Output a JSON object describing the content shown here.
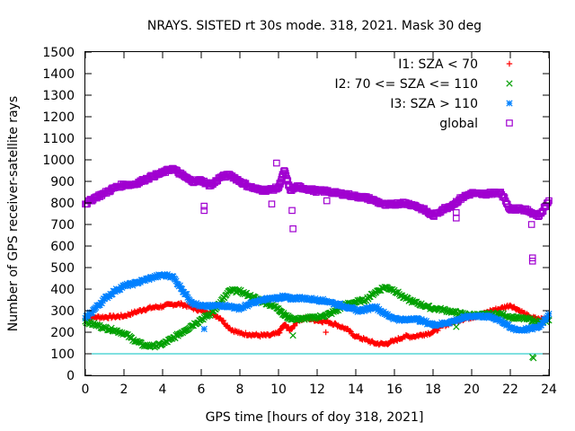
{
  "chart_data": {
    "type": "scatter",
    "title": "NRAYS. SISTED rt 30s mode. 318, 2021. Mask 30 deg",
    "xlabel": "GPS time [hours of doy 318, 2021]",
    "ylabel": "Number of GPS receiver-satellite rays",
    "xlim": [
      0,
      24
    ],
    "ylim": [
      0,
      1500
    ],
    "xticks": [
      0,
      2,
      4,
      6,
      8,
      10,
      12,
      14,
      16,
      18,
      20,
      22,
      24
    ],
    "yticks": [
      0,
      100,
      200,
      300,
      400,
      500,
      600,
      700,
      800,
      900,
      1000,
      1100,
      1200,
      1300,
      1400,
      1500
    ],
    "reference_line": {
      "y": 100,
      "color": "#00c0c0"
    },
    "legend_position": "top-right",
    "series": [
      {
        "name": "I1: SZA < 70",
        "marker": "plus",
        "color": "#ff0000",
        "x": [
          0,
          0.5,
          1,
          1.5,
          2,
          2.5,
          3,
          3.5,
          4,
          4.5,
          5,
          5.5,
          6,
          6.5,
          7,
          7.5,
          8,
          8.5,
          9,
          9.5,
          10,
          10.3,
          10.6,
          11,
          11.5,
          12,
          12.5,
          13,
          13.5,
          14,
          14.5,
          15,
          15.5,
          16,
          16.5,
          17,
          17.5,
          18,
          18.5,
          19,
          19.5,
          20,
          20.5,
          21,
          21.5,
          22,
          22.5,
          23,
          23.5,
          24
        ],
        "y": [
          265,
          270,
          270,
          272,
          275,
          290,
          305,
          315,
          320,
          330,
          330,
          315,
          300,
          290,
          265,
          215,
          195,
          190,
          185,
          185,
          195,
          235,
          210,
          255,
          265,
          255,
          250,
          235,
          215,
          180,
          165,
          148,
          145,
          160,
          180,
          180,
          190,
          200,
          230,
          245,
          260,
          270,
          280,
          300,
          310,
          325,
          300,
          270,
          260,
          265
        ]
      },
      {
        "name": "I2: 70 <= SZA <= 110",
        "marker": "cross",
        "color": "#00a000",
        "x": [
          0,
          0.5,
          1,
          1.5,
          2,
          2.5,
          3,
          3.5,
          4,
          4.5,
          5,
          5.5,
          6,
          6.5,
          7,
          7.5,
          8,
          8.5,
          9,
          9.5,
          10,
          10.3,
          10.6,
          11,
          11.5,
          12,
          12.5,
          13,
          13.5,
          14,
          14.5,
          15,
          15.5,
          16,
          16.5,
          17,
          17.5,
          18,
          18.5,
          19,
          19.5,
          20,
          20.5,
          21,
          21.5,
          22,
          22.5,
          23,
          23.5,
          24
        ],
        "y": [
          250,
          235,
          220,
          210,
          195,
          165,
          140,
          135,
          145,
          170,
          200,
          230,
          260,
          285,
          340,
          395,
          390,
          370,
          350,
          330,
          310,
          280,
          265,
          260,
          265,
          270,
          280,
          300,
          330,
          340,
          350,
          385,
          410,
          395,
          360,
          340,
          325,
          310,
          305,
          295,
          285,
          280,
          280,
          285,
          285,
          270,
          265,
          260,
          245,
          255
        ]
      },
      {
        "name": "I3: SZA > 110",
        "marker": "star",
        "color": "#0080ff",
        "x": [
          0,
          0.5,
          1,
          1.5,
          2,
          2.5,
          3,
          3.5,
          4,
          4.5,
          5,
          5.5,
          6,
          6.5,
          7,
          7.5,
          8,
          8.5,
          9,
          9.5,
          10,
          10.3,
          10.6,
          11,
          11.5,
          12,
          12.5,
          13,
          13.5,
          14,
          14.5,
          15,
          15.5,
          16,
          16.5,
          17,
          17.5,
          18,
          18.5,
          19,
          19.5,
          20,
          20.5,
          21,
          21.5,
          22,
          22.5,
          23,
          23.5,
          24
        ],
        "y": [
          265,
          310,
          355,
          390,
          415,
          425,
          440,
          455,
          465,
          460,
          400,
          340,
          320,
          320,
          325,
          320,
          310,
          330,
          345,
          355,
          360,
          365,
          355,
          360,
          355,
          350,
          345,
          330,
          320,
          300,
          305,
          320,
          285,
          265,
          255,
          265,
          250,
          235,
          240,
          250,
          265,
          275,
          275,
          270,
          255,
          220,
          210,
          215,
          225,
          285
        ]
      },
      {
        "name": "global",
        "marker": "open-square",
        "color": "#a000d0",
        "x": [
          0,
          0.5,
          1,
          1.5,
          2,
          2.5,
          3,
          3.5,
          4,
          4.5,
          5,
          5.5,
          6,
          6.5,
          7,
          7.5,
          8,
          8.5,
          9,
          9.5,
          10,
          10.3,
          10.6,
          11,
          11.5,
          12,
          12.5,
          13,
          13.5,
          14,
          14.5,
          15,
          15.5,
          16,
          16.5,
          17,
          17.5,
          18,
          18.5,
          19,
          19.5,
          20,
          20.5,
          21,
          21.5,
          22,
          22.5,
          23,
          23.5,
          24
        ],
        "y": [
          795,
          825,
          845,
          870,
          885,
          885,
          905,
          925,
          940,
          960,
          930,
          900,
          905,
          880,
          920,
          930,
          900,
          875,
          860,
          860,
          870,
          950,
          860,
          875,
          865,
          855,
          855,
          845,
          840,
          830,
          825,
          810,
          790,
          795,
          800,
          790,
          770,
          740,
          770,
          790,
          825,
          845,
          840,
          845,
          850,
          770,
          775,
          760,
          740,
          810
        ]
      }
    ],
    "outliers": [
      {
        "series": "global",
        "x": 6.15,
        "y": 785
      },
      {
        "series": "global",
        "x": 6.15,
        "y": 765
      },
      {
        "series": "global",
        "x": 9.65,
        "y": 795
      },
      {
        "series": "global",
        "x": 9.9,
        "y": 985
      },
      {
        "series": "global",
        "x": 10.7,
        "y": 765
      },
      {
        "series": "global",
        "x": 10.75,
        "y": 680
      },
      {
        "series": "global",
        "x": 12.5,
        "y": 810
      },
      {
        "series": "global",
        "x": 19.2,
        "y": 755
      },
      {
        "series": "global",
        "x": 19.2,
        "y": 730
      },
      {
        "series": "global",
        "x": 23.1,
        "y": 700
      },
      {
        "series": "global",
        "x": 23.15,
        "y": 545
      },
      {
        "series": "global",
        "x": 23.15,
        "y": 530
      },
      {
        "series": "I2: 70 <= SZA <= 110",
        "x": 10.75,
        "y": 185
      },
      {
        "series": "I2: 70 <= SZA <= 110",
        "x": 23.15,
        "y": 85
      },
      {
        "series": "I2: 70 <= SZA <= 110",
        "x": 23.2,
        "y": 80
      },
      {
        "series": "I2: 70 <= SZA <= 110",
        "x": 19.2,
        "y": 225
      },
      {
        "series": "I1: SZA < 70",
        "x": 12.45,
        "y": 200
      },
      {
        "series": "I3: SZA > 110",
        "x": 6.15,
        "y": 215
      }
    ]
  }
}
